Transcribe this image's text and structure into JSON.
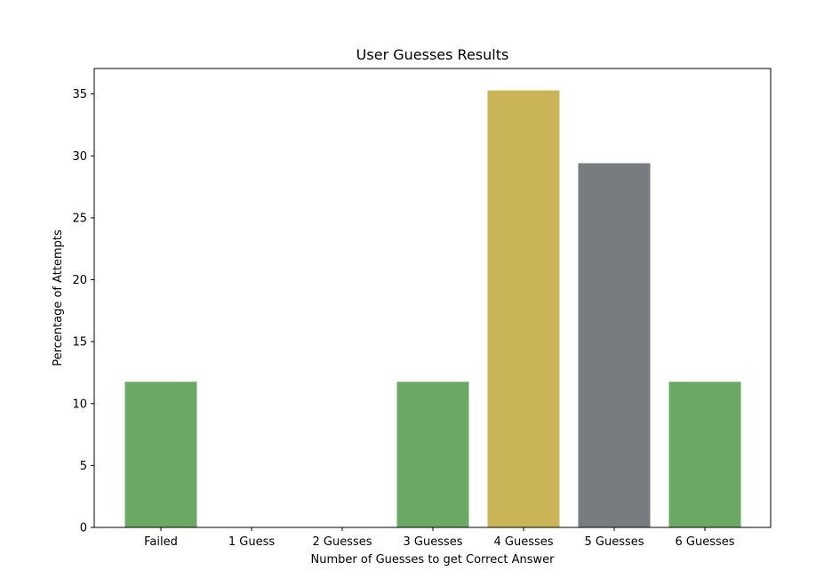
{
  "chart_data": {
    "type": "bar",
    "title": "User Guesses Results",
    "xlabel": "Number of Guesses to get Correct Answer",
    "ylabel": "Percentage of Attempts",
    "categories": [
      "Failed",
      "1 Guess",
      "2 Guesses",
      "3 Guesses",
      "4 Guesses",
      "5 Guesses",
      "6 Guesses"
    ],
    "values": [
      11.76,
      0,
      0,
      11.76,
      35.29,
      29.41,
      11.76
    ],
    "bar_colors": [
      "#6aa964",
      "#6aa964",
      "#6aa964",
      "#6aa964",
      "#c9b458",
      "#787c7e",
      "#6aa964"
    ],
    "ylim": [
      0,
      37.06
    ],
    "yticks": [
      0,
      5,
      10,
      15,
      20,
      25,
      30,
      35
    ],
    "grid": false,
    "legend": "none"
  }
}
